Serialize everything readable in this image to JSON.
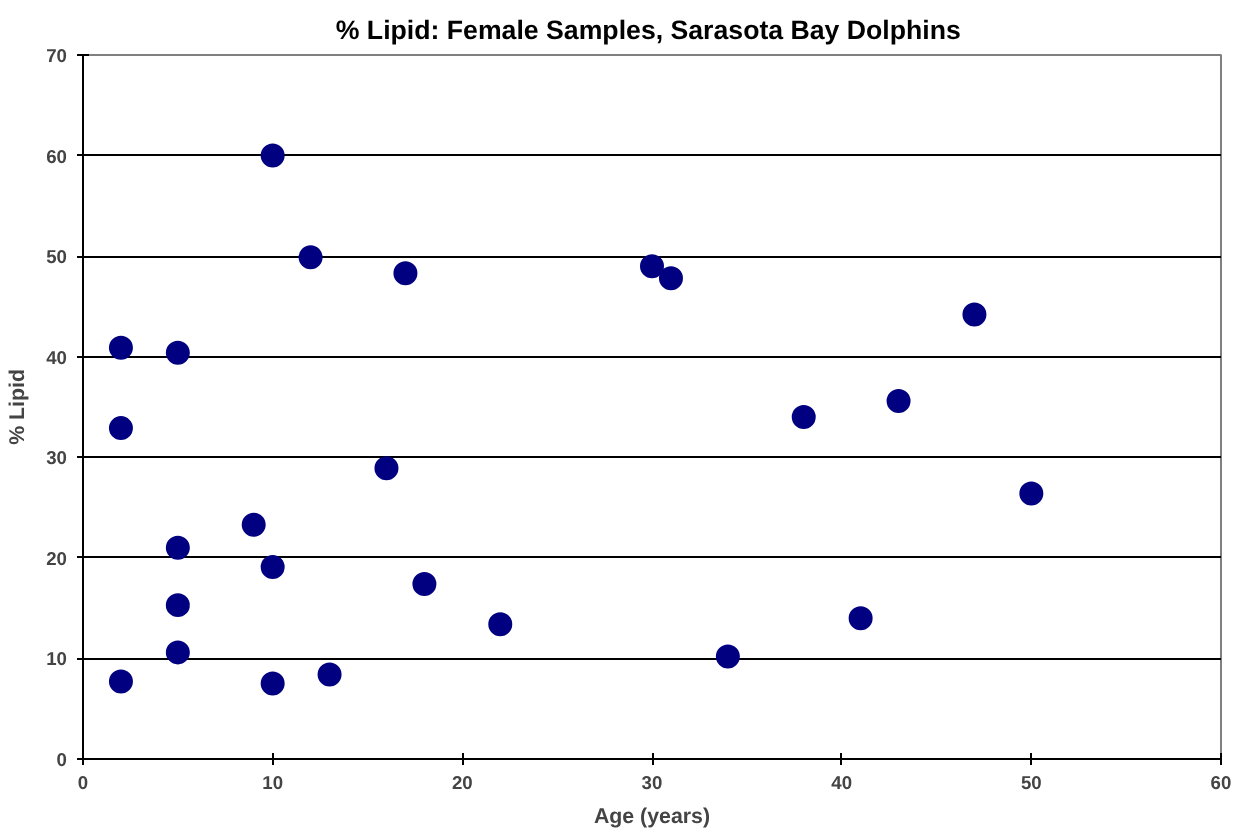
{
  "chart_data": {
    "type": "scatter",
    "title": "% Lipid:  Female Samples, Sarasota Bay Dolphins",
    "xlabel": "Age (years)",
    "ylabel": "% Lipid",
    "x": [
      2,
      2,
      2,
      5,
      5,
      5,
      5,
      9,
      10,
      10,
      10,
      12,
      13,
      16,
      17,
      18,
      22,
      30,
      31,
      34,
      38,
      41,
      43,
      47,
      50
    ],
    "series": [
      {
        "color": "#000080",
        "values": [
          7.7,
          32.9,
          40.9,
          40.4,
          21.0,
          15.3,
          10.6,
          23.3,
          60,
          19.1,
          7.5,
          49.9,
          8.4,
          28.9,
          48.3,
          17.4,
          13.4,
          49.0,
          47.8,
          10.2,
          34.0,
          14.0,
          35.6,
          44.2,
          26.4
        ]
      }
    ],
    "xlim": [
      0,
      60
    ],
    "xticks": [
      0,
      10,
      20,
      30,
      40,
      50,
      60
    ],
    "ylim": [
      0,
      70
    ],
    "yticks": [
      0,
      10,
      20,
      30,
      40,
      50,
      60,
      70
    ],
    "grid": "y",
    "marker": "circle"
  }
}
